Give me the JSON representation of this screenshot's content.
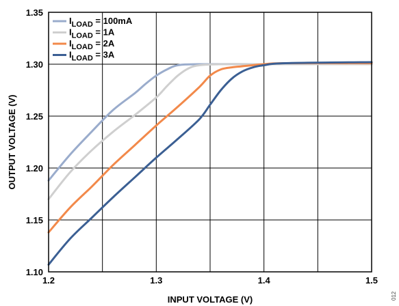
{
  "chart_data": {
    "type": "line",
    "title": "",
    "xlabel": "INPUT VOLTAGE (V)",
    "ylabel": "OUTPUT VOLTAGE (V)",
    "xlim": [
      1.2,
      1.5
    ],
    "ylim": [
      1.1,
      1.35
    ],
    "grid": true,
    "legend_position": "top-left",
    "x_ticks": [
      1.2,
      1.3,
      1.4,
      1.5
    ],
    "x_tick_labels": [
      "1.2",
      "1.3",
      "1.4",
      "1.5"
    ],
    "y_ticks": [
      1.1,
      1.15,
      1.2,
      1.25,
      1.3,
      1.35
    ],
    "y_tick_labels": [
      "1.10",
      "1.15",
      "1.20",
      "1.25",
      "1.30",
      "1.35"
    ],
    "series": [
      {
        "name_main": "I",
        "name_sub": "LOAD",
        "name_rest": " = 100mA",
        "color": "#9aaccc",
        "points": [
          [
            1.2,
            1.188
          ],
          [
            1.22,
            1.213
          ],
          [
            1.24,
            1.235
          ],
          [
            1.26,
            1.256
          ],
          [
            1.28,
            1.272
          ],
          [
            1.29,
            1.281
          ],
          [
            1.3,
            1.289
          ],
          [
            1.31,
            1.295
          ],
          [
            1.32,
            1.299
          ],
          [
            1.34,
            1.3
          ],
          [
            1.4,
            1.3
          ],
          [
            1.5,
            1.3
          ]
        ]
      },
      {
        "name_main": "I",
        "name_sub": "LOAD",
        "name_rest": " = 1A",
        "color": "#cfcfcf",
        "points": [
          [
            1.2,
            1.17
          ],
          [
            1.22,
            1.196
          ],
          [
            1.24,
            1.217
          ],
          [
            1.26,
            1.235
          ],
          [
            1.28,
            1.251
          ],
          [
            1.3,
            1.268
          ],
          [
            1.31,
            1.279
          ],
          [
            1.32,
            1.289
          ],
          [
            1.33,
            1.296
          ],
          [
            1.34,
            1.299
          ],
          [
            1.36,
            1.3
          ],
          [
            1.4,
            1.3
          ],
          [
            1.5,
            1.3
          ]
        ]
      },
      {
        "name_main": "I",
        "name_sub": "LOAD",
        "name_rest": " = 2A",
        "color": "#f2894a",
        "points": [
          [
            1.2,
            1.138
          ],
          [
            1.22,
            1.162
          ],
          [
            1.24,
            1.182
          ],
          [
            1.26,
            1.203
          ],
          [
            1.28,
            1.222
          ],
          [
            1.3,
            1.241
          ],
          [
            1.32,
            1.259
          ],
          [
            1.34,
            1.278
          ],
          [
            1.35,
            1.289
          ],
          [
            1.36,
            1.295
          ],
          [
            1.37,
            1.297
          ],
          [
            1.38,
            1.298
          ],
          [
            1.4,
            1.3
          ],
          [
            1.42,
            1.301
          ],
          [
            1.5,
            1.301
          ]
        ]
      },
      {
        "name_main": "I",
        "name_sub": "LOAD",
        "name_rest": " = 3A",
        "color": "#3b5f93",
        "points": [
          [
            1.2,
            1.107
          ],
          [
            1.22,
            1.132
          ],
          [
            1.24,
            1.152
          ],
          [
            1.26,
            1.172
          ],
          [
            1.28,
            1.191
          ],
          [
            1.3,
            1.21
          ],
          [
            1.32,
            1.228
          ],
          [
            1.34,
            1.247
          ],
          [
            1.35,
            1.261
          ],
          [
            1.36,
            1.275
          ],
          [
            1.37,
            1.286
          ],
          [
            1.38,
            1.293
          ],
          [
            1.39,
            1.297
          ],
          [
            1.4,
            1.299
          ],
          [
            1.42,
            1.301
          ],
          [
            1.5,
            1.302
          ]
        ]
      }
    ]
  },
  "figure_id": "012"
}
